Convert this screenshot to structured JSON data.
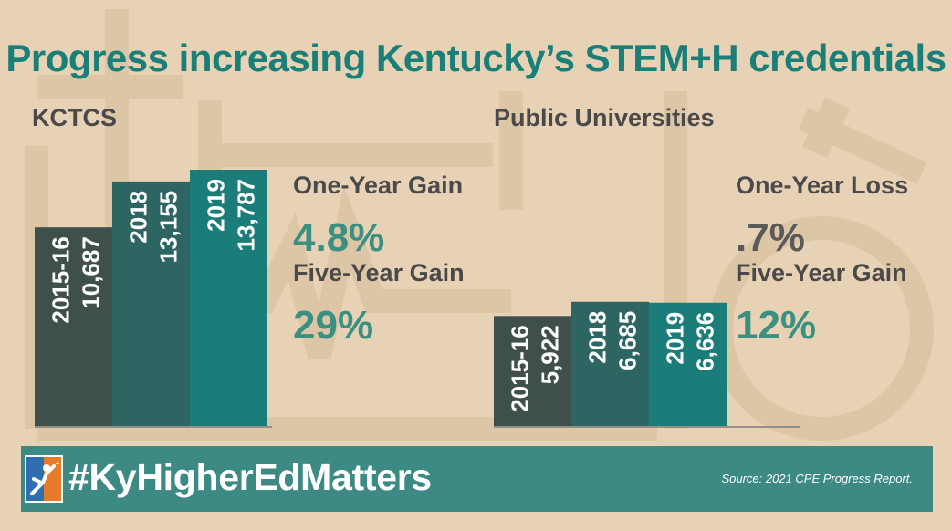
{
  "title": "Progress increasing Kentucky’s STEM+H credentials",
  "sections": {
    "kctcs": {
      "heading": "KCTCS",
      "stat1_label": "One-Year Gain",
      "stat1_value": "4.8%",
      "stat2_label": "Five-Year Gain",
      "stat2_value": "29%"
    },
    "universities": {
      "heading": "Public Universities",
      "stat1_label": "One-Year Loss",
      "stat1_value": ".7%",
      "stat2_label": "Five-Year Gain",
      "stat2_value": "12%"
    }
  },
  "chart_data": [
    {
      "type": "bar",
      "title": "KCTCS",
      "categories": [
        "2015-16",
        "2018",
        "2019"
      ],
      "values": [
        10687,
        13155,
        13787
      ],
      "value_labels": [
        "10,687",
        "13,155",
        "13,787"
      ],
      "colors": [
        "#3f4f4b",
        "#2d6562",
        "#1b7d79"
      ]
    },
    {
      "type": "bar",
      "title": "Public Universities",
      "categories": [
        "2015-16",
        "2018",
        "2019"
      ],
      "values": [
        5922,
        6685,
        6636
      ],
      "value_labels": [
        "5,922",
        "6,685",
        "6,636"
      ],
      "colors": [
        "#3f4f4b",
        "#2d6562",
        "#1b7d79"
      ]
    }
  ],
  "footer": {
    "hashtag": "#KyHigherEdMatters",
    "source": "Source: 2021 CPE Progress Report."
  },
  "colors": {
    "background": "#e8d2b5",
    "title": "#1a7f78",
    "footer": "#3d8a85",
    "gain": "#3b9082",
    "loss": "#5a5a5a"
  }
}
